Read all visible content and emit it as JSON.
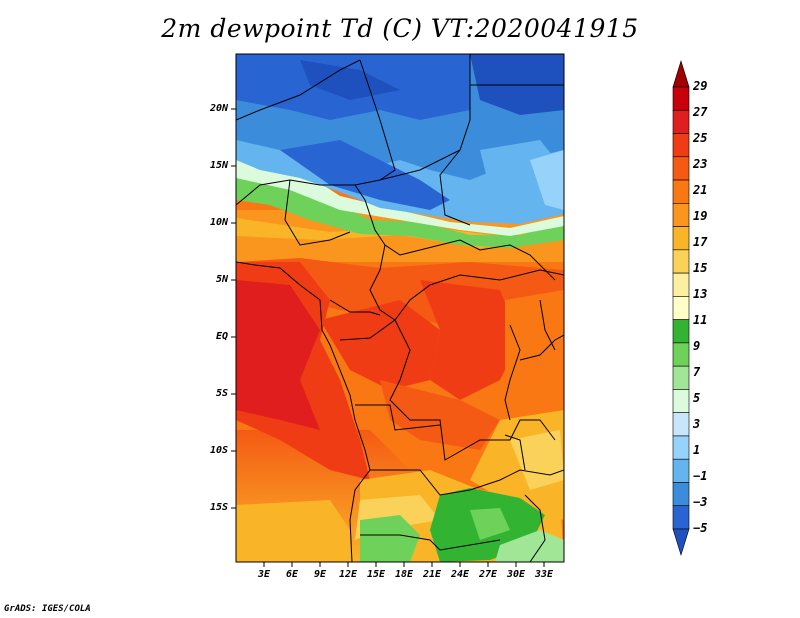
{
  "title": "2m dewpoint Td (C) VT:2020041915",
  "credit": "GrADS: IGES/COLA",
  "map": {
    "lat_labels": [
      "20N",
      "15N",
      "10N",
      "5N",
      "EQ",
      "5S",
      "10S",
      "15S"
    ],
    "lon_labels": [
      "3E",
      "6E",
      "9E",
      "12E",
      "15E",
      "18E",
      "21E",
      "24E",
      "27E",
      "30E",
      "33E"
    ]
  },
  "colorbar": {
    "labels": [
      "29",
      "27",
      "25",
      "23",
      "21",
      "19",
      "17",
      "15",
      "13",
      "11",
      "9",
      "7",
      "5",
      "3",
      "1",
      "−1",
      "−3",
      "−5"
    ],
    "colors": [
      "#a00000",
      "#c8000a",
      "#e11e1e",
      "#f03c14",
      "#f55a14",
      "#fa7814",
      "#fa961e",
      "#fab428",
      "#fad25a",
      "#faf0a0",
      "#ffffc8",
      "#32b432",
      "#6ed25a",
      "#a0e696",
      "#dcfadc",
      "#c8e6fa",
      "#96d2fa",
      "#64b4f0",
      "#3c8cdc",
      "#2864d2",
      "#1e50be"
    ]
  }
}
